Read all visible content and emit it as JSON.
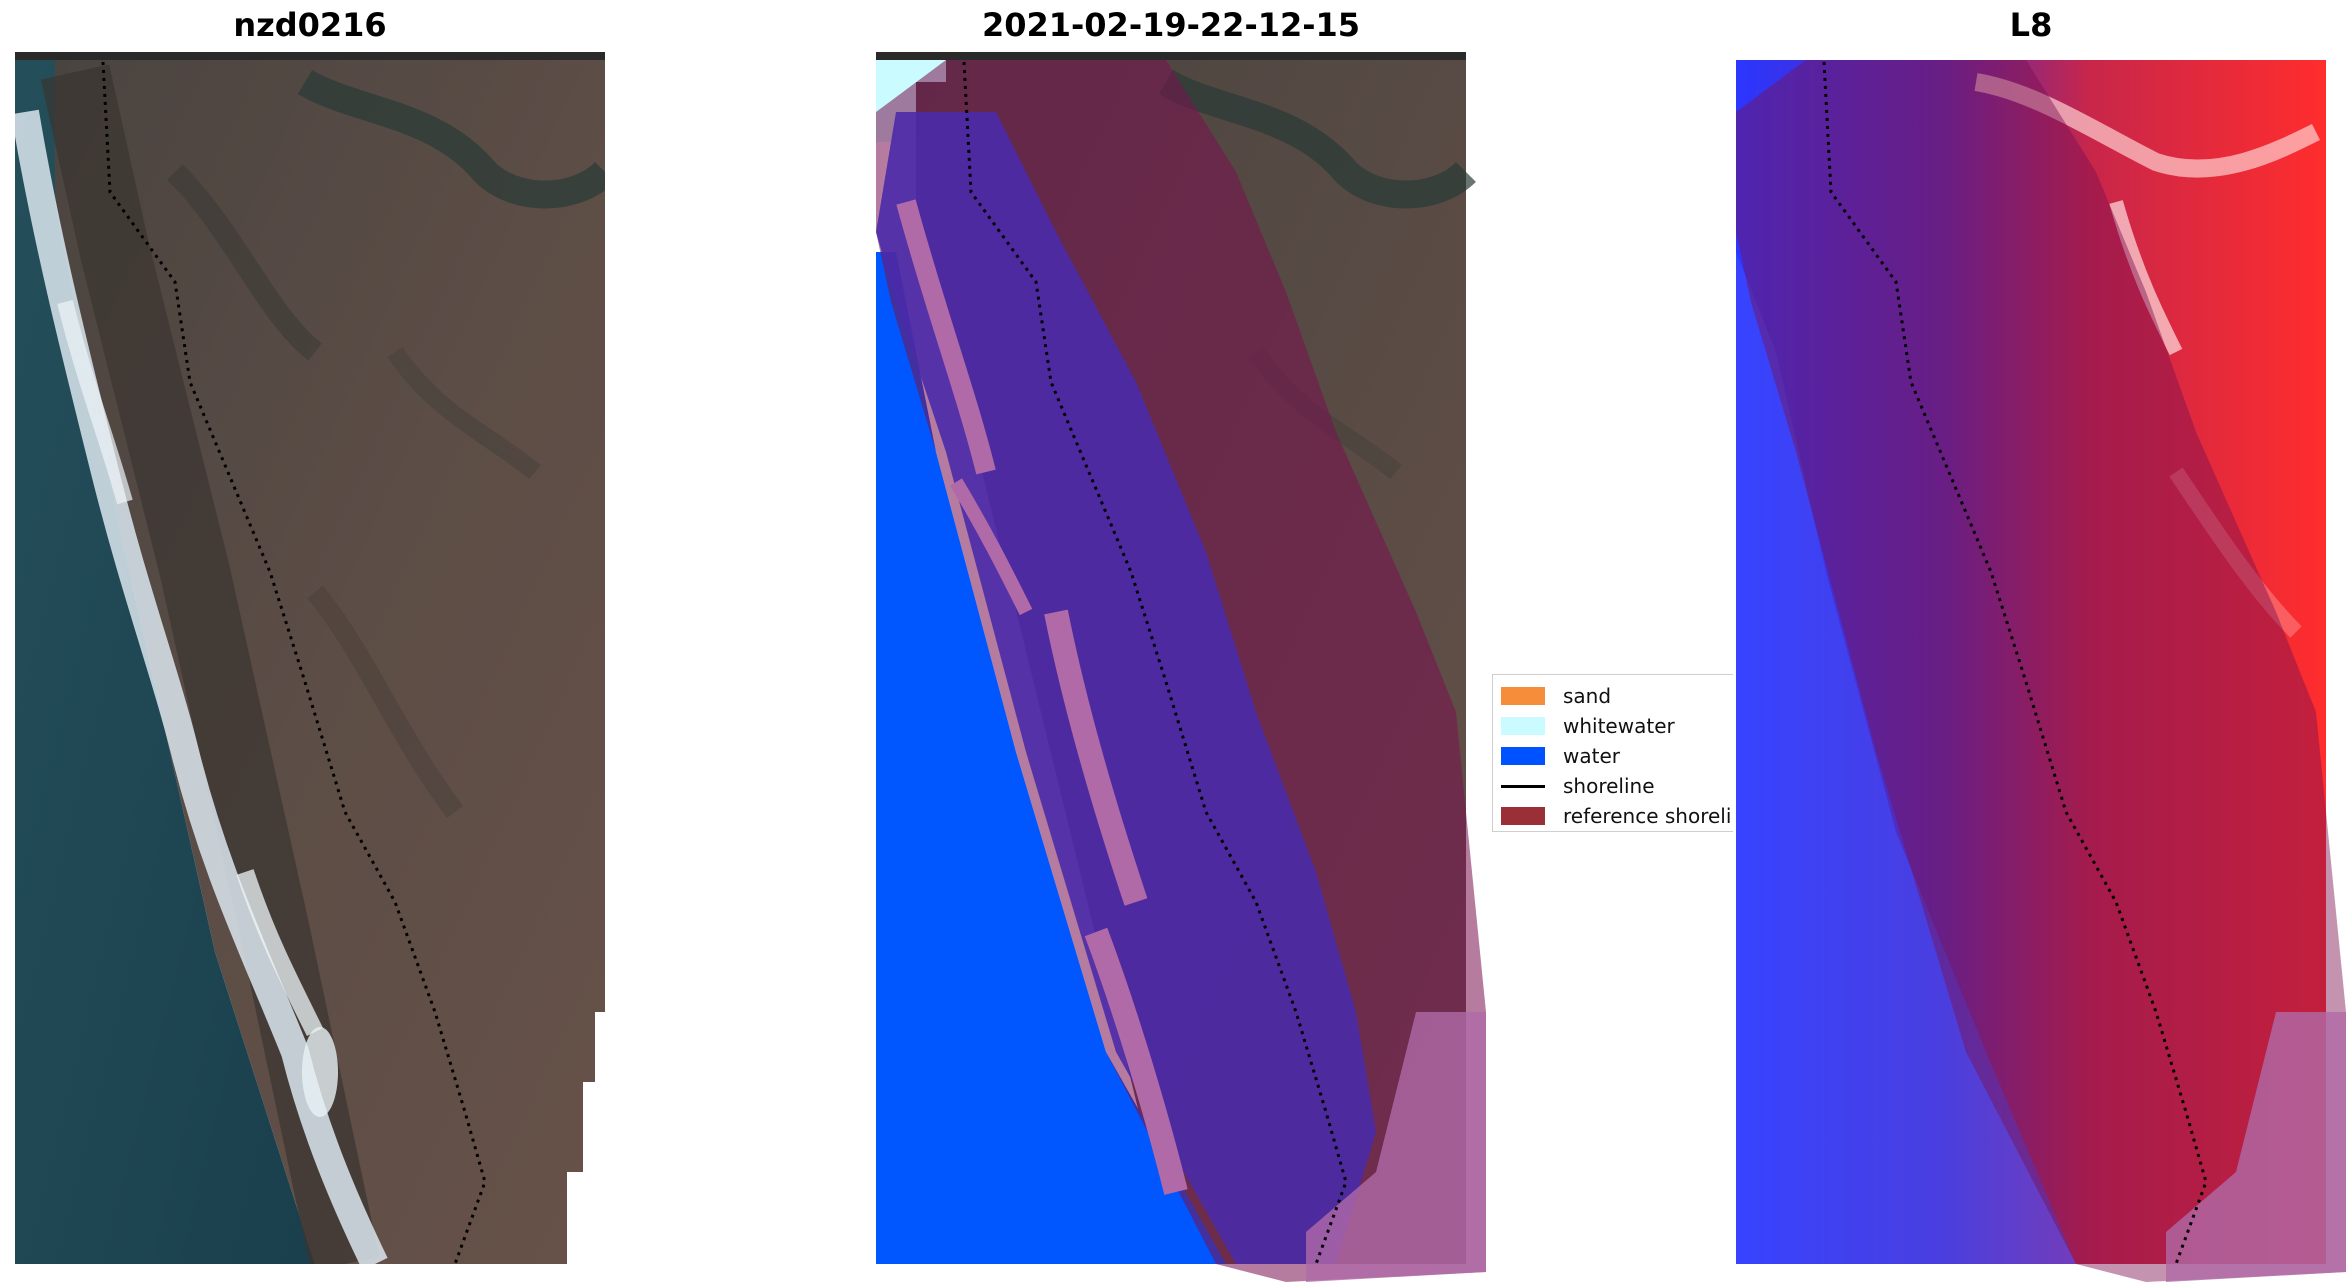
{
  "panels": {
    "left_title": "nzd0216",
    "middle_title": "2021-02-19-22-12-15",
    "right_title": "L8"
  },
  "legend": {
    "items": [
      {
        "label": "sand",
        "color": "#f58d3a"
      },
      {
        "label": "whitewater",
        "color": "#c9fbff"
      },
      {
        "label": "water",
        "color": "#0051ff"
      },
      {
        "label": "shoreline",
        "color": "#000000"
      },
      {
        "label": "reference shoreli",
        "color": "#9a2f36"
      }
    ]
  },
  "colors": {
    "ocean": "#1f4a55",
    "land": "#5a4c45",
    "surf": "#d8e4ea",
    "water_class": "#0057ff",
    "buffer_overlay": "#7a1050",
    "sand_overlay": "#b06aa8",
    "index_land": "#ff3a3a",
    "index_water": "#3a42ff"
  }
}
